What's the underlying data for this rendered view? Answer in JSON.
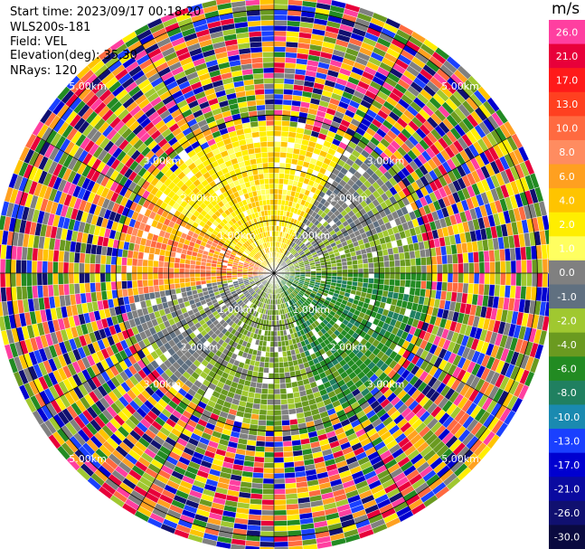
{
  "header": {
    "start_time": "Start time: 2023/09/17 00:18:20",
    "instrument": "WLS200s-181",
    "field": "Field: VEL",
    "elevation": "Elevation(deg): 35.30",
    "nrays": "NRays: 120"
  },
  "chart_data": {
    "type": "heatmap",
    "projection": "PPI polar (radial velocity)",
    "field": "VEL",
    "n_rays": 120,
    "range_rings_km": [
      1,
      2,
      3,
      5
    ],
    "range_ring_labels": [
      "1.00km",
      "2.00km",
      "3.00km",
      "5.00km"
    ],
    "max_range_km": 5.2,
    "azimuth_lines_deg": [
      0,
      30,
      60,
      90,
      120,
      150,
      180,
      210,
      240,
      270,
      300,
      330
    ],
    "colorbar": {
      "unit": "m/s",
      "tick_labels": [
        "26.0",
        "21.0",
        "17.0",
        "13.0",
        "10.0",
        "8.0",
        "6.0",
        "4.0",
        "2.0",
        "1.0",
        "0.0",
        "-1.0",
        "-2.0",
        "-4.0",
        "-6.0",
        "-8.0",
        "-10.0",
        "-13.0",
        "-17.0",
        "-21.0",
        "-26.0",
        "-30.0"
      ],
      "colors": [
        "#ff3fa0",
        "#e8003a",
        "#ff1a1a",
        "#ff4020",
        "#ff6a40",
        "#ff8c60",
        "#ffa020",
        "#ffc400",
        "#ffee00",
        "#ffff60",
        "#808080",
        "#607080",
        "#a0c830",
        "#6a9a20",
        "#228b22",
        "#208060",
        "#1a8ab0",
        "#1a40ff",
        "#0000d0",
        "#0a0aa0",
        "#101070",
        "#0a0a40"
      ]
    },
    "regions": [
      {
        "azimuth_deg": [
          300,
          360
        ],
        "velocity_ms": 3.0,
        "color": "yellow"
      },
      {
        "azimuth_deg": [
          0,
          30
        ],
        "velocity_ms": 2.5,
        "color": "yellow"
      },
      {
        "azimuth_deg": [
          30,
          70
        ],
        "velocity_ms": 0.0,
        "color": "gray"
      },
      {
        "azimuth_deg": [
          70,
          90
        ],
        "velocity_ms": -3.0,
        "color": "olive-green"
      },
      {
        "azimuth_deg": [
          90,
          160
        ],
        "velocity_ms": -5.5,
        "color": "green"
      },
      {
        "azimuth_deg": [
          160,
          200
        ],
        "velocity_ms": -2.5,
        "color": "olive"
      },
      {
        "azimuth_deg": [
          200,
          220
        ],
        "velocity_ms": -1.5,
        "color": "light green"
      },
      {
        "azimuth_deg": [
          220,
          260
        ],
        "velocity_ms": 0.0,
        "color": "gray"
      },
      {
        "azimuth_deg": [
          260,
          300
        ],
        "velocity_ms": 7.0,
        "color": "orange"
      }
    ],
    "clean_range_km": [
      0.1,
      3.0
    ],
    "noisy_range_km": [
      3.0,
      5.2
    ]
  }
}
